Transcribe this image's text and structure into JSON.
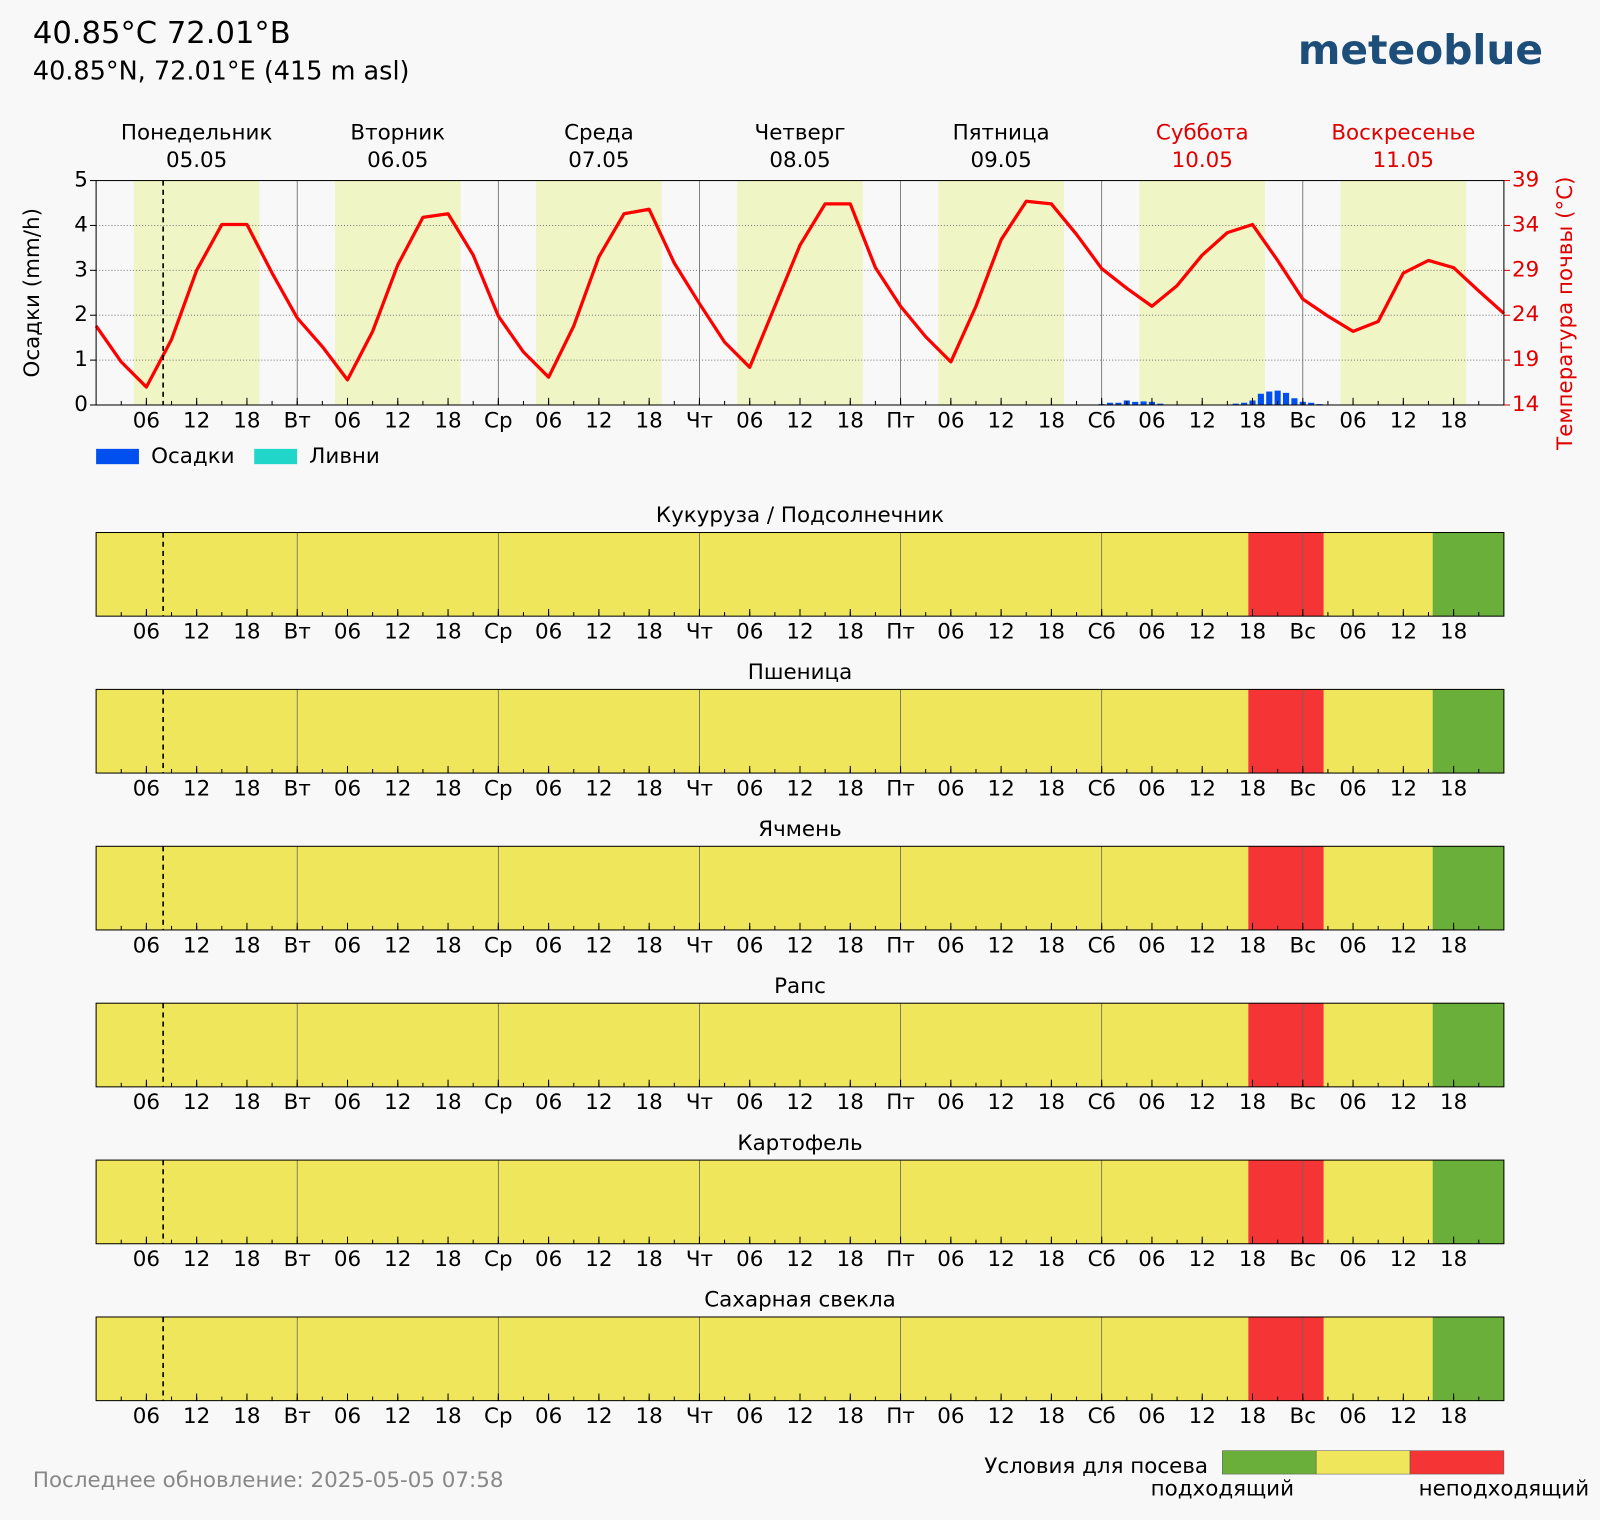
{
  "header": {
    "title": "40.85°C 72.01°B",
    "subtitle": "40.85°N, 72.01°E (415 m asl)",
    "logo": "meteoblue"
  },
  "footer": "Последнее обновление: 2025-05-05 07:58",
  "legend": {
    "title": "Условия для посева",
    "colors": [
      "#6aaf3a",
      "#f0e65c",
      "#f53535"
    ],
    "labels": [
      "подходящий",
      "неподходящий"
    ]
  },
  "chart_data": [
    {
      "type": "bar",
      "days": [
        {
          "name": "Понедельник",
          "date": "05.05",
          "color": "#000000"
        },
        {
          "name": "Вторник",
          "date": "06.05",
          "color": "#000000"
        },
        {
          "name": "Среда",
          "date": "07.05",
          "color": "#000000"
        },
        {
          "name": "Четверг",
          "date": "08.05",
          "color": "#000000"
        },
        {
          "name": "Пятница",
          "date": "09.05",
          "color": "#000000"
        },
        {
          "name": "Суббота",
          "date": "10.05",
          "color": "#e00000"
        },
        {
          "name": "Воскресенье",
          "date": "11.05",
          "color": "#e00000"
        }
      ],
      "ylabel": "Осадки (mm/h)",
      "y2label": "Температура почвы (°C)",
      "y2color": "#e00000",
      "ylim": [
        0,
        5
      ],
      "yticks": [
        0,
        1,
        2,
        3,
        4,
        5
      ],
      "y2lim": [
        14,
        39
      ],
      "y2ticks": [
        14,
        19,
        24,
        29,
        34,
        39
      ],
      "xlim": [
        0,
        168
      ],
      "xticks": [
        {
          "value": 6,
          "label": "06"
        },
        12,
        18,
        {
          "value": 24,
          "label": "Вт"
        },
        {
          "value": 30,
          "label": "06"
        },
        {
          "value": 36,
          "label": "12"
        },
        {
          "value": 42,
          "label": "18"
        },
        {
          "value": 48,
          "label": "Ср"
        },
        {
          "value": 54,
          "label": "06"
        },
        {
          "value": 60,
          "label": "12"
        },
        {
          "value": 66,
          "label": "18"
        },
        {
          "value": 72,
          "label": "Чт"
        },
        {
          "value": 78,
          "label": "06"
        },
        {
          "value": 84,
          "label": "12"
        },
        {
          "value": 90,
          "label": "18"
        },
        {
          "value": 96,
          "label": "Пт"
        },
        {
          "value": 102,
          "label": "06"
        },
        {
          "value": 108,
          "label": "12"
        },
        {
          "value": 114,
          "label": "18"
        },
        {
          "value": 120,
          "label": "Сб"
        },
        {
          "value": 126,
          "label": "06"
        },
        {
          "value": 132,
          "label": "12"
        },
        {
          "value": 138,
          "label": "18"
        },
        {
          "value": 144,
          "label": "Вс"
        },
        {
          "value": 150,
          "label": "06"
        },
        {
          "value": 156,
          "label": "12"
        },
        {
          "value": 162,
          "label": "18"
        }
      ],
      "minor_tick_step": 3,
      "grid": true,
      "now": 8,
      "shade": {
        "start": 4.5,
        "end": 19.5,
        "color": "#f0f5c6"
      },
      "series": [
        {
          "name": "Осадки",
          "color": "#0050f0",
          "x": [
            120,
            121,
            122,
            123,
            124,
            125,
            126,
            127,
            136,
            137,
            138,
            139,
            140,
            141,
            142,
            143,
            144,
            145,
            146
          ],
          "values": [
            0.02,
            0.05,
            0.05,
            0.1,
            0.07,
            0.08,
            0.07,
            0.03,
            0.03,
            0.05,
            0.1,
            0.25,
            0.3,
            0.32,
            0.27,
            0.15,
            0.07,
            0.05,
            0.02
          ]
        },
        {
          "name": "Ливни",
          "color": "#1fd6c8",
          "x": [],
          "values": []
        },
        {
          "type": "line",
          "axis": "y2",
          "color": "#ff0000",
          "x": [
            0,
            3,
            6,
            9,
            12,
            15,
            18,
            21,
            24,
            27,
            30,
            33,
            36,
            39,
            42,
            45,
            48,
            51,
            54,
            57,
            60,
            63,
            66,
            69,
            72,
            75,
            78,
            81,
            84,
            87,
            90,
            93,
            96,
            99,
            102,
            105,
            108,
            111,
            114,
            117,
            120,
            123,
            126,
            129,
            132,
            135,
            138,
            141,
            144,
            147,
            150,
            153,
            156,
            159,
            162,
            165,
            168
          ],
          "values": [
            22.8,
            18.8,
            16.0,
            21.3,
            29.0,
            34.1,
            34.1,
            28.7,
            23.7,
            20.5,
            16.8,
            22.2,
            29.6,
            34.9,
            35.3,
            30.7,
            23.9,
            19.9,
            17.1,
            22.8,
            30.5,
            35.3,
            35.8,
            29.8,
            25.3,
            21.0,
            18.2,
            25.0,
            31.8,
            36.4,
            36.4,
            29.3,
            25.0,
            21.6,
            18.8,
            25.0,
            32.4,
            36.7,
            36.4,
            33.0,
            29.2,
            27.0,
            25.0,
            27.3,
            30.7,
            33.2,
            34.1,
            30.1,
            25.8,
            23.9,
            22.2,
            23.3,
            28.7,
            30.1,
            29.3,
            26.7,
            24.2
          ]
        }
      ]
    },
    {
      "type": "strip",
      "title": "Кукуруза / Подсолнечник",
      "segments": [
        {
          "from": 0,
          "to": 137.5,
          "color": "#f0e65c"
        },
        {
          "from": 137.5,
          "to": 146.5,
          "color": "#f53535"
        },
        {
          "from": 146.5,
          "to": 159.5,
          "color": "#f0e65c"
        },
        {
          "from": 159.5,
          "to": 168,
          "color": "#6aaf3a"
        }
      ]
    },
    {
      "type": "strip",
      "title": "Пшеница",
      "segments": [
        {
          "from": 0,
          "to": 137.5,
          "color": "#f0e65c"
        },
        {
          "from": 137.5,
          "to": 146.5,
          "color": "#f53535"
        },
        {
          "from": 146.5,
          "to": 159.5,
          "color": "#f0e65c"
        },
        {
          "from": 159.5,
          "to": 168,
          "color": "#6aaf3a"
        }
      ]
    },
    {
      "type": "strip",
      "title": "Ячмень",
      "segments": [
        {
          "from": 0,
          "to": 137.5,
          "color": "#f0e65c"
        },
        {
          "from": 137.5,
          "to": 146.5,
          "color": "#f53535"
        },
        {
          "from": 146.5,
          "to": 159.5,
          "color": "#f0e65c"
        },
        {
          "from": 159.5,
          "to": 168,
          "color": "#6aaf3a"
        }
      ]
    },
    {
      "type": "strip",
      "title": "Рапс",
      "segments": [
        {
          "from": 0,
          "to": 137.5,
          "color": "#f0e65c"
        },
        {
          "from": 137.5,
          "to": 146.5,
          "color": "#f53535"
        },
        {
          "from": 146.5,
          "to": 159.5,
          "color": "#f0e65c"
        },
        {
          "from": 159.5,
          "to": 168,
          "color": "#6aaf3a"
        }
      ]
    },
    {
      "type": "strip",
      "title": "Картофель",
      "segments": [
        {
          "from": 0,
          "to": 137.5,
          "color": "#f0e65c"
        },
        {
          "from": 137.5,
          "to": 146.5,
          "color": "#f53535"
        },
        {
          "from": 146.5,
          "to": 159.5,
          "color": "#f0e65c"
        },
        {
          "from": 159.5,
          "to": 168,
          "color": "#6aaf3a"
        }
      ]
    },
    {
      "type": "strip",
      "title": "Сахарная свекла",
      "segments": [
        {
          "from": 0,
          "to": 137.5,
          "color": "#f0e65c"
        },
        {
          "from": 137.5,
          "to": 146.5,
          "color": "#f53535"
        },
        {
          "from": 146.5,
          "to": 159.5,
          "color": "#f0e65c"
        },
        {
          "from": 159.5,
          "to": 168,
          "color": "#6aaf3a"
        }
      ]
    }
  ]
}
